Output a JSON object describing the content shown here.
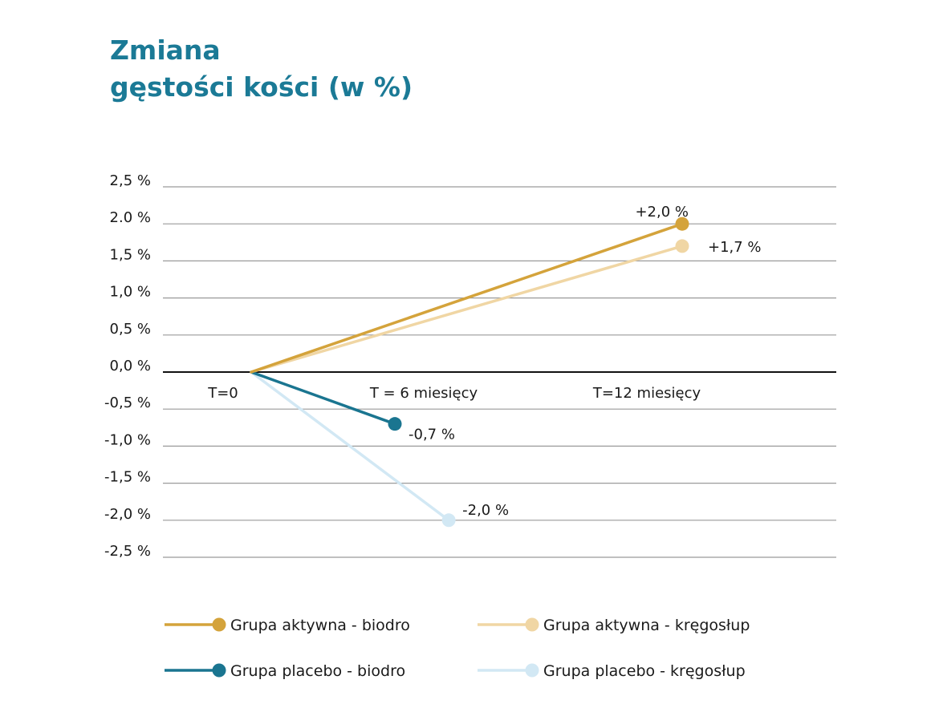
{
  "title": {
    "line1": "Zmiana",
    "line2": "gęstości kości (w %)"
  },
  "chart_data": {
    "type": "line",
    "ylim": [
      -2.5,
      2.5
    ],
    "ytick_values": [
      2.5,
      2.0,
      1.5,
      1.0,
      0.5,
      0.0,
      -0.5,
      -1.0,
      -1.5,
      -2.0,
      -2.5
    ],
    "ytick_labels": [
      "2,5 %",
      "2.0 %",
      "1,5 %",
      "1,0 %",
      "0,5 %",
      "0,0 %",
      "-0,5 %",
      "-1,0 %",
      "-1,5 %",
      "-2,0 %",
      "-2,5 %"
    ],
    "categories": [
      "T=0",
      "T = 6 miesięcy",
      "T=12 miesięcy"
    ],
    "grid": true,
    "legend_position": "bottom",
    "series": [
      {
        "name": "Grupa aktywna - biodro",
        "color": "#d4a33b",
        "points": [
          {
            "x": 0,
            "y": 0.0
          },
          {
            "x": 12,
            "y": 2.0
          }
        ],
        "end_label": "+2,0 %"
      },
      {
        "name": "Grupa aktywna - kręgosłup",
        "color": "#f0d6a4",
        "points": [
          {
            "x": 0,
            "y": 0.0
          },
          {
            "x": 12,
            "y": 1.7
          }
        ],
        "end_label": "+1,7 %"
      },
      {
        "name": "Grupa placebo - biodro",
        "color": "#1a7590",
        "points": [
          {
            "x": 0,
            "y": 0.0
          },
          {
            "x": 4,
            "y": -0.7
          }
        ],
        "end_label": "-0,7 %"
      },
      {
        "name": "Grupa placebo - kręgosłup",
        "color": "#d2e8f4",
        "points": [
          {
            "x": 0,
            "y": 0.0
          },
          {
            "x": 5.5,
            "y": -2.0
          }
        ],
        "end_label": "-2,0 %"
      }
    ]
  }
}
